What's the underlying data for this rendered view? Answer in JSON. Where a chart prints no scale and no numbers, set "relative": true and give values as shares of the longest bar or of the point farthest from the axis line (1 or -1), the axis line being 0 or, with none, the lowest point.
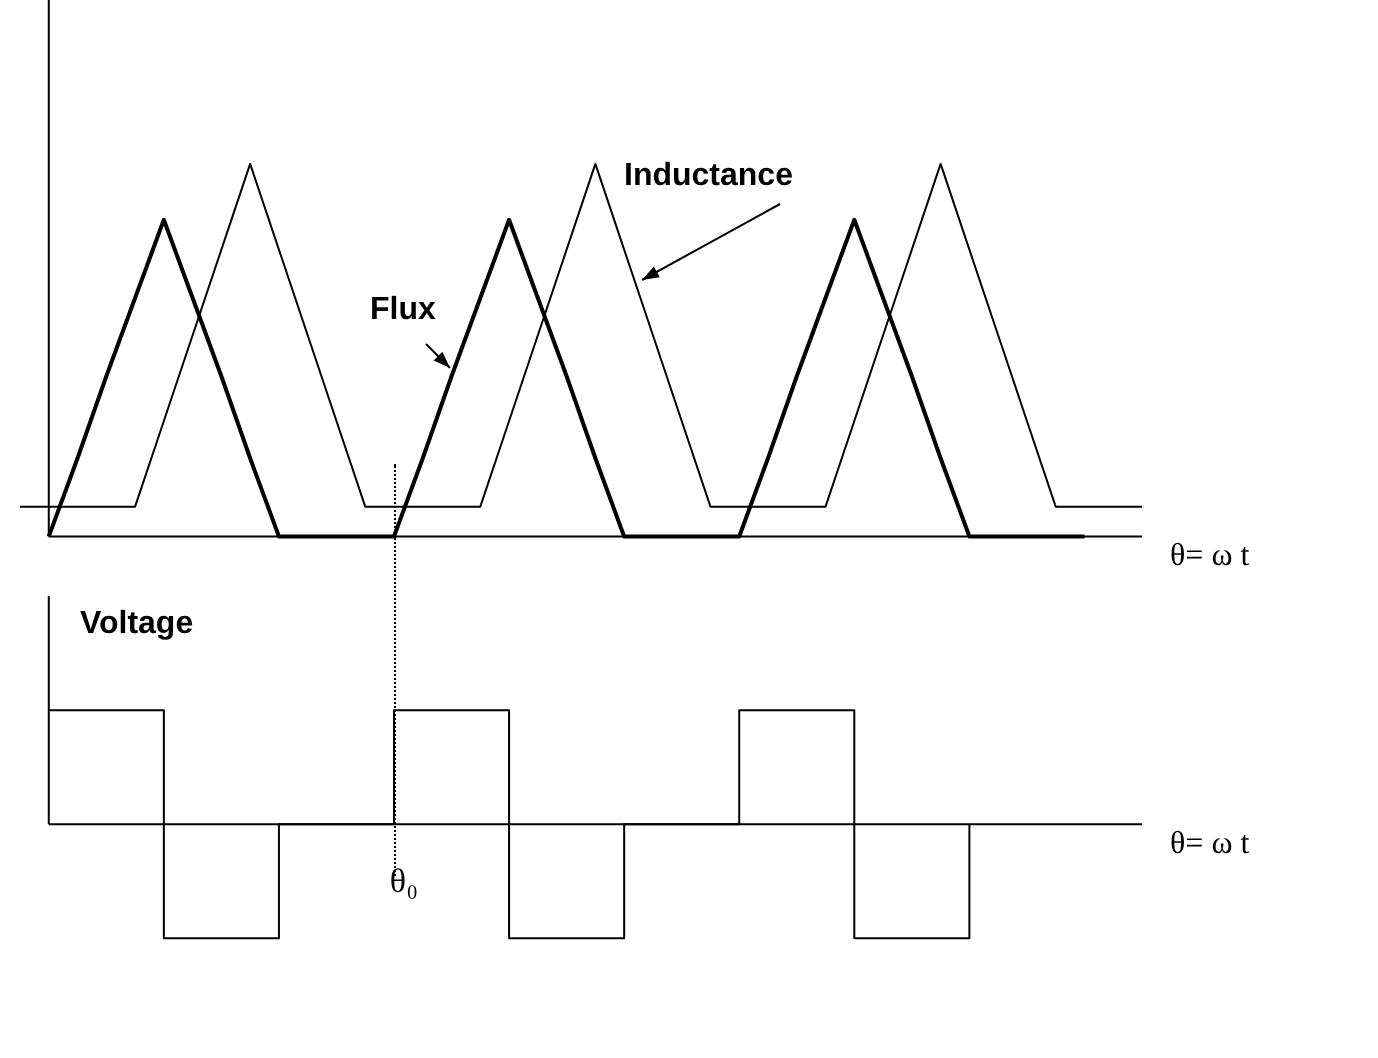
{
  "chart_data": [
    {
      "type": "line",
      "xlabel": "θ= ω t",
      "relative": true,
      "tick_labels": false,
      "marker": "none",
      "line_style": "solid",
      "categories": [
        null,
        null,
        null,
        null,
        null,
        null,
        null,
        null,
        null,
        null,
        null,
        null,
        null,
        null,
        null,
        null,
        null,
        null,
        null,
        null,
        null,
        null,
        null,
        null,
        null,
        null,
        null,
        null,
        null,
        null,
        null,
        null,
        null,
        null,
        null,
        null,
        null,
        null,
        null,
        null
      ],
      "series": [
        {
          "name": "Flux",
          "color": "#000000",
          "values": [
            null,
            0,
            0.21,
            0.43,
            0.64,
            0.85,
            0.64,
            0.43,
            0.21,
            0,
            0,
            0,
            0,
            0,
            0.21,
            0.43,
            0.64,
            0.85,
            0.64,
            0.43,
            0.21,
            0,
            0,
            0,
            0,
            0,
            0.21,
            0.43,
            0.64,
            0.85,
            0.64,
            0.43,
            0.21,
            0,
            0,
            0,
            0,
            0,
            null,
            null
          ]
        },
        {
          "name": "Inductance",
          "color": "#000000",
          "values": [
            0.08,
            0.08,
            0.08,
            0.08,
            0.08,
            0.31,
            0.54,
            0.77,
            1,
            0.77,
            0.54,
            0.31,
            0.08,
            0.08,
            0.08,
            0.08,
            0.08,
            0.31,
            0.54,
            0.77,
            1,
            0.77,
            0.54,
            0.31,
            0.08,
            0.08,
            0.08,
            0.08,
            0.08,
            0.31,
            0.54,
            0.77,
            1,
            0.77,
            0.54,
            0.31,
            0.08,
            0.08,
            0.08,
            0.08
          ]
        }
      ]
    },
    {
      "type": "step",
      "xlabel": "θ= ω t",
      "relative": true,
      "tick_labels": false,
      "marker": "none",
      "line_style": "solid",
      "categories": [
        null,
        null,
        null,
        null,
        null,
        null,
        null,
        null,
        null,
        null,
        null,
        null,
        null,
        null,
        null,
        null,
        null,
        null,
        null,
        null,
        null,
        null,
        null,
        null,
        null,
        null,
        null,
        null,
        null,
        null,
        null,
        null,
        null,
        null,
        null,
        null,
        null,
        null,
        null,
        null
      ],
      "annotations": [
        "θ₀"
      ],
      "series": [
        {
          "name": "Voltage",
          "color": "#000000",
          "values": [
            null,
            1,
            1,
            1,
            1,
            -1,
            -1,
            -1,
            -1,
            0,
            0,
            0,
            0,
            1,
            1,
            1,
            1,
            -1,
            -1,
            -1,
            -1,
            0,
            0,
            0,
            0,
            1,
            1,
            1,
            1,
            -1,
            -1,
            -1,
            -1,
            0,
            null,
            null,
            null,
            null,
            null,
            null
          ]
        }
      ]
    }
  ]
}
